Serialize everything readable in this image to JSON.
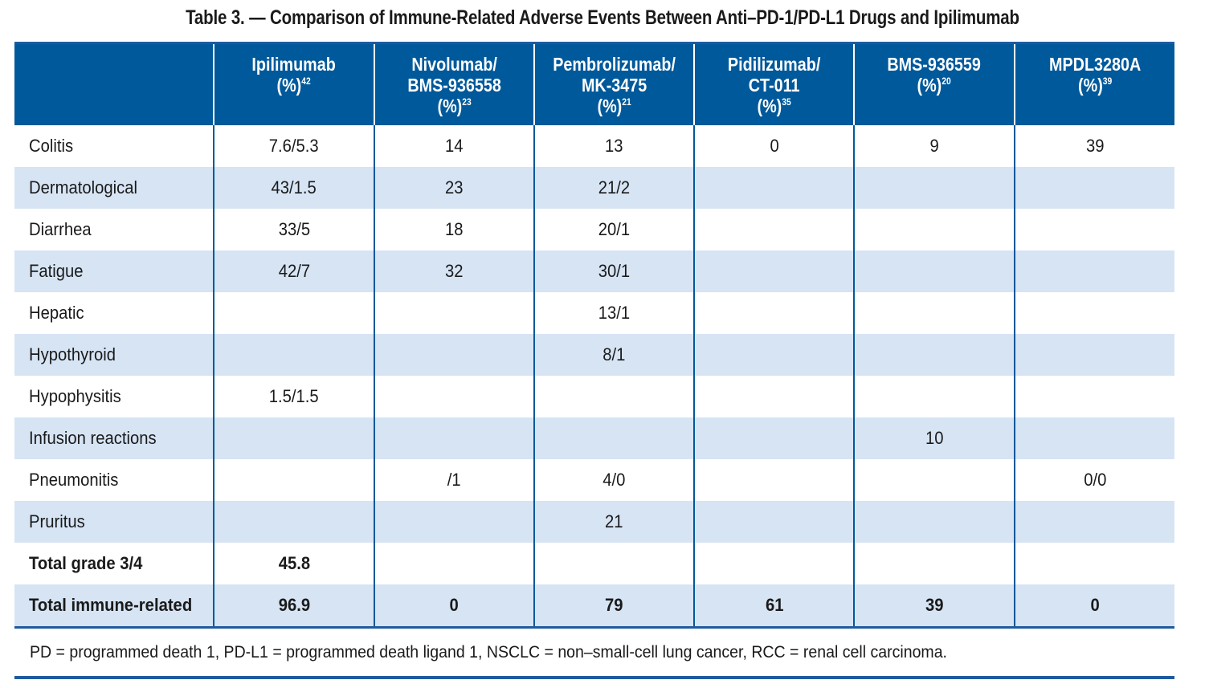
{
  "title": "Table 3. — Comparison of Immune-Related Adverse Events Between Anti–PD-1/PD-L1 Drugs and Ipilimumab",
  "colors": {
    "header_bg": "#00599b",
    "stripe_bg": "#d6e4f4",
    "rule": "#1f5aa0"
  },
  "columns": [
    {
      "lines": [
        "Ipilimumab",
        "(%)"
      ],
      "ref": "42"
    },
    {
      "lines": [
        "Nivolumab/",
        "BMS-936558",
        "(%)"
      ],
      "ref": "23"
    },
    {
      "lines": [
        "Pembrolizumab/",
        "MK-3475",
        "(%)"
      ],
      "ref": "21"
    },
    {
      "lines": [
        "Pidilizumab/",
        "CT-011",
        "(%)"
      ],
      "ref": "35"
    },
    {
      "lines": [
        "BMS-936559",
        "(%)"
      ],
      "ref": "20"
    },
    {
      "lines": [
        "MPDL3280A",
        "(%)"
      ],
      "ref": "39"
    }
  ],
  "rows": [
    {
      "label": "Colitis",
      "values": [
        "7.6/5.3",
        "14",
        "13",
        "0",
        "9",
        "39"
      ]
    },
    {
      "label": "Dermatological",
      "values": [
        "43/1.5",
        "23",
        "21/2",
        "",
        "",
        ""
      ]
    },
    {
      "label": "Diarrhea",
      "values": [
        "33/5",
        "18",
        "20/1",
        "",
        "",
        ""
      ]
    },
    {
      "label": "Fatigue",
      "values": [
        "42/7",
        "32",
        "30/1",
        "",
        "",
        ""
      ]
    },
    {
      "label": "Hepatic",
      "values": [
        "",
        "",
        "13/1",
        "",
        "",
        ""
      ]
    },
    {
      "label": "Hypothyroid",
      "values": [
        "",
        "",
        "8/1",
        "",
        "",
        ""
      ]
    },
    {
      "label": "Hypophysitis",
      "values": [
        "1.5/1.5",
        "",
        "",
        "",
        "",
        ""
      ]
    },
    {
      "label": "Infusion reactions",
      "values": [
        "",
        "",
        "",
        "",
        "10",
        ""
      ]
    },
    {
      "label": "Pneumonitis",
      "values": [
        "",
        "/1",
        "4/0",
        "",
        "",
        "0/0"
      ]
    },
    {
      "label": "Pruritus",
      "values": [
        "",
        "",
        "21",
        "",
        "",
        ""
      ]
    },
    {
      "label": "Total grade 3/4",
      "values": [
        "45.8",
        "",
        "",
        "",
        "",
        ""
      ],
      "bold": true
    },
    {
      "label": "Total immune-related",
      "values": [
        "96.9",
        "0",
        "79",
        "61",
        "39",
        "0"
      ],
      "bold": true
    }
  ],
  "footnote": "PD = programmed death 1, PD-L1 = programmed death ligand 1, NSCLC = non–small-cell lung cancer, RCC = renal cell carcinoma."
}
